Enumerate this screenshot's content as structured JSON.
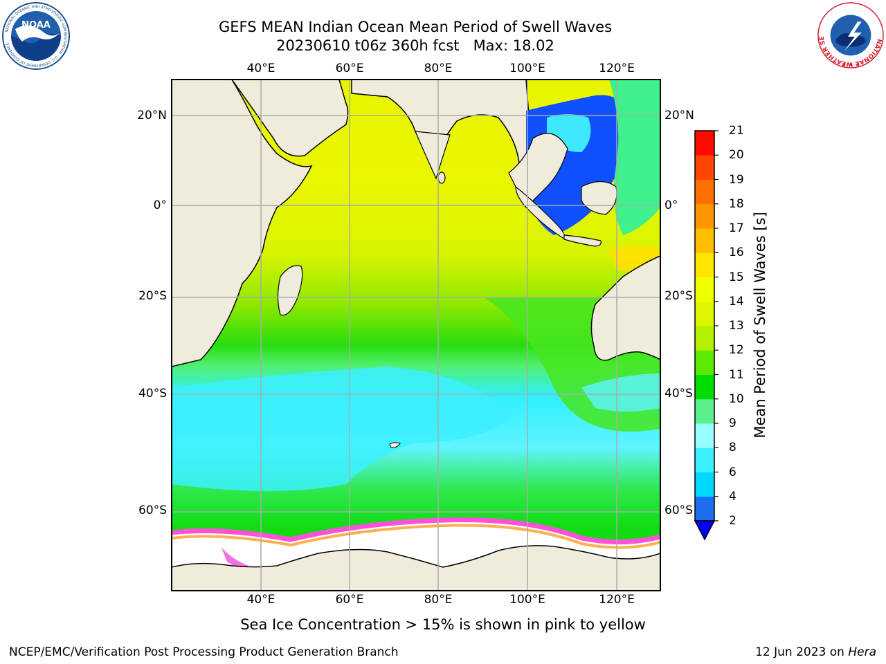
{
  "header": {
    "title_line1": "GEFS MEAN Indian Ocean Mean Period of Swell Waves",
    "title_line2_part1": "20230610 t06z 360h fcst",
    "title_line2_part2": "Max: 18.02"
  },
  "logos": {
    "left": "NOAA",
    "left_ring_text": "NATIONAL OCEANIC AND ATMOSPHERIC ADMINISTRATION · U.S. DEPARTMENT OF COMMERCE",
    "right_ring_text": "NATIONAL WEATHER SERVICE"
  },
  "map": {
    "lon_labels": [
      "40°E",
      "60°E",
      "80°E",
      "100°E",
      "120°E"
    ],
    "lat_labels": [
      "20°N",
      "0°",
      "20°S",
      "40°S",
      "60°S"
    ],
    "colors": {
      "land": "#efecdc",
      "ice_area": "#ffffff",
      "grid": "#aaaaaa"
    }
  },
  "colorbar": {
    "label": "Mean Period of Swell Waves [s]",
    "ticks": [
      "2",
      "4",
      "6",
      "8",
      "9",
      "10",
      "11",
      "12",
      "13",
      "14",
      "15",
      "16",
      "17",
      "18",
      "19",
      "20",
      "21"
    ],
    "colors": [
      "#1e6ef0",
      "#00d7ff",
      "#3cf0ff",
      "#96ffff",
      "#5af08c",
      "#00dc00",
      "#5aeb00",
      "#b4f000",
      "#dcf500",
      "#f0ff00",
      "#ffe600",
      "#ffbe00",
      "#ff9600",
      "#ff6e00",
      "#ff4600",
      "#ff0a00"
    ],
    "under_color": "#0000ff"
  },
  "footer": {
    "note": "Sea Ice Concentration > 15% is shown in pink to yellow",
    "left": "NCEP/EMC/Verification Post Processing Product Generation Branch",
    "right_date": "12 Jun 2023 on ",
    "right_machine": "Hera"
  }
}
